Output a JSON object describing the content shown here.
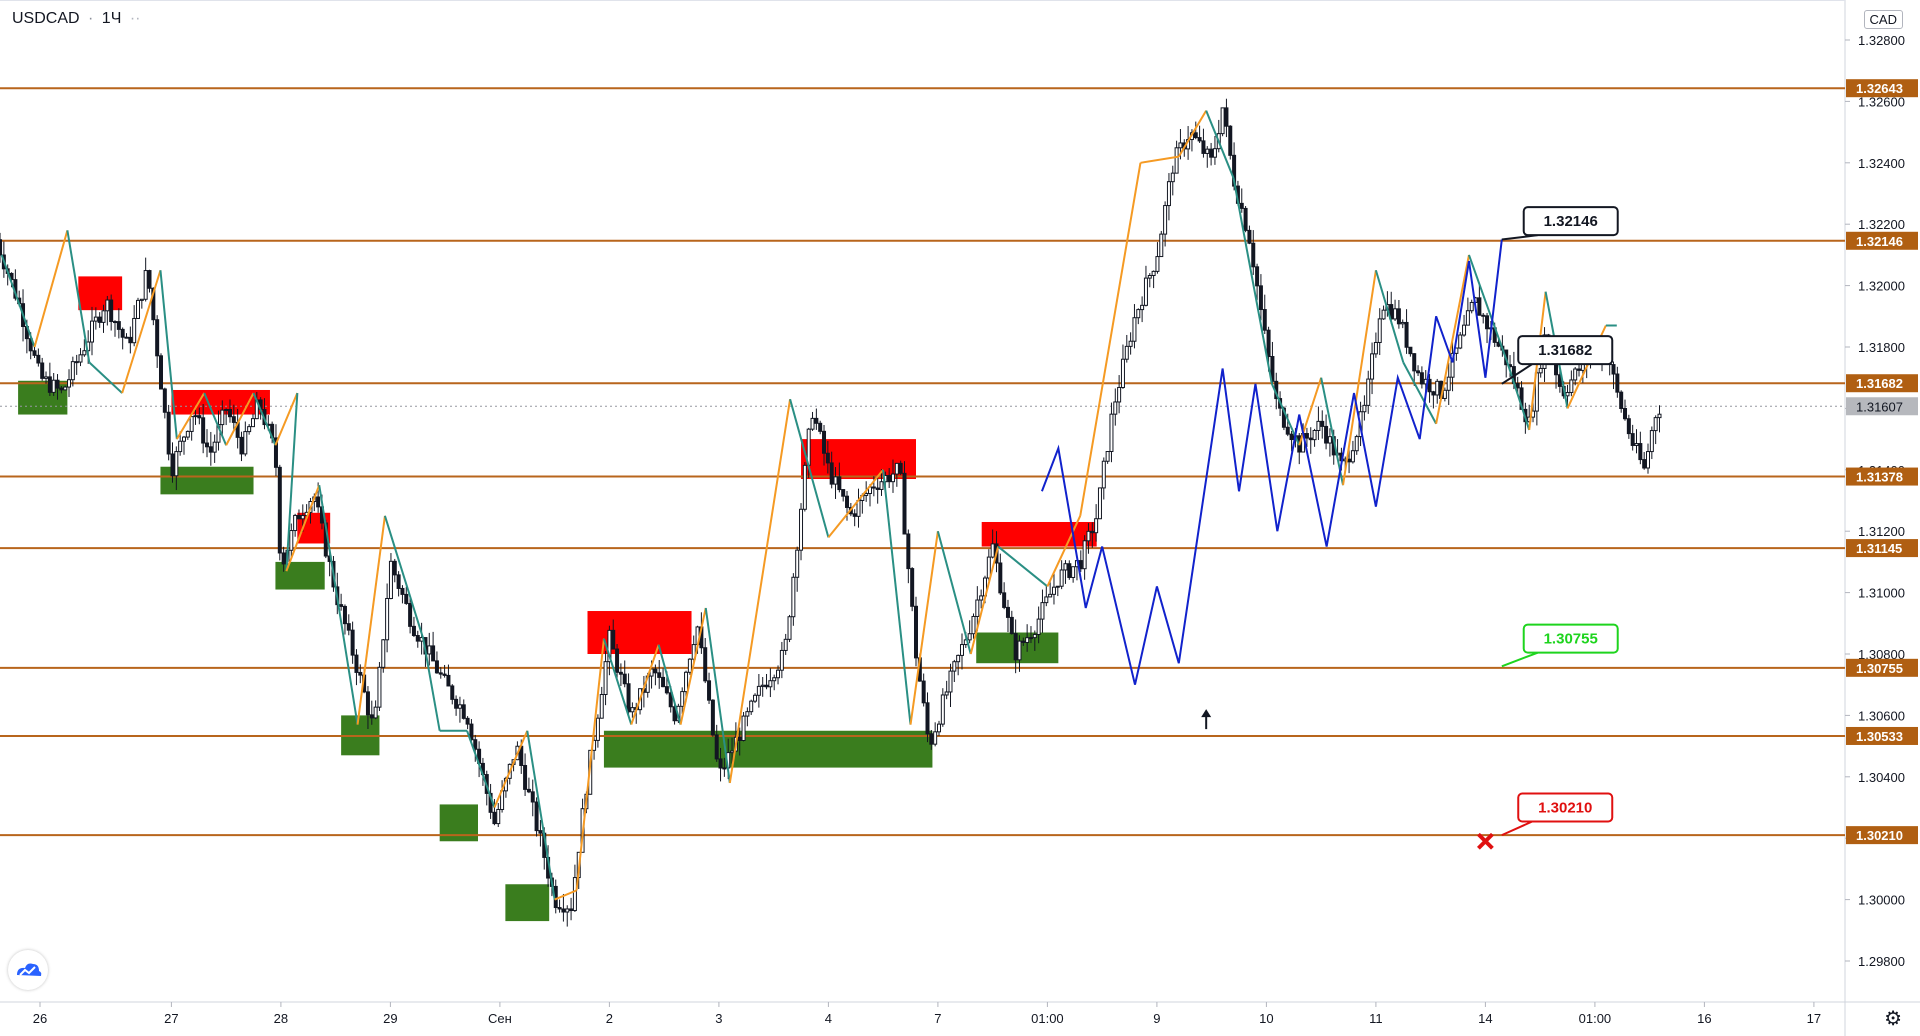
{
  "header": {
    "symbol": "USDCAD",
    "separator": "·",
    "interval": "1Ч",
    "dots": "··"
  },
  "currency_label": "CAD",
  "icons": {
    "logo": "tradingview-logo-icon",
    "settings": "gear-icon",
    "target_arrow": "arrow-up-icon",
    "stop": "x-mark-icon"
  },
  "colors": {
    "level_line": "#b8651c",
    "level_label_bg": "#b05f12",
    "current_price_bg": "#b6b8bd",
    "zigzag_up": "#f59a23",
    "zigzag_down": "#2a8f84",
    "forecast": "#1122cc",
    "supply_zone": "#ff0000",
    "demand_zone": "#3a7d1e",
    "target_green": "#1ed41e",
    "target_red": "#e01010"
  },
  "chart_data": {
    "type": "candlestick",
    "title": "",
    "yaxis_ticks": [
      "1.32800",
      "1.32600",
      "1.32400",
      "1.32200",
      "1.32000",
      "1.31800",
      "1.31600",
      "1.31400",
      "1.31200",
      "1.31000",
      "1.30800",
      "1.30600",
      "1.30400",
      "1.30200",
      "1.30000",
      "1.29800"
    ],
    "ylim": [
      1.2971,
      1.3292
    ],
    "xaxis_ticks": [
      {
        "label": "26",
        "x": 0.8
      },
      {
        "label": "27",
        "x": 2.0
      },
      {
        "label": "28",
        "x": 3.0
      },
      {
        "label": "29",
        "x": 4.0
      },
      {
        "label": "Сен",
        "x": 5.0
      },
      {
        "label": "2",
        "x": 6.0
      },
      {
        "label": "3",
        "x": 7.0
      },
      {
        "label": "4",
        "x": 8.0
      },
      {
        "label": "7",
        "x": 9.0
      },
      {
        "label": "01:00",
        "x": 10.0
      },
      {
        "label": "9",
        "x": 11.0
      },
      {
        "label": "10",
        "x": 12.0
      },
      {
        "label": "11",
        "x": 13.0
      },
      {
        "label": "14",
        "x": 14.0
      },
      {
        "label": "01:00",
        "x": 15.0
      },
      {
        "label": "16",
        "x": 16.0
      },
      {
        "label": "17",
        "x": 17.0
      }
    ],
    "xlim": [
      0.4,
      17.2
    ],
    "levels": [
      "1.32643",
      "1.32146",
      "1.31682",
      "1.31378",
      "1.31145",
      "1.30755",
      "1.30533",
      "1.30210"
    ],
    "current_price": "1.31607",
    "price_path": [
      [
        0.4,
        1.3215
      ],
      [
        0.6,
        1.3195
      ],
      [
        0.8,
        1.317
      ],
      [
        1.0,
        1.3165
      ],
      [
        1.2,
        1.318
      ],
      [
        1.4,
        1.3195
      ],
      [
        1.6,
        1.318
      ],
      [
        1.78,
        1.3205
      ],
      [
        1.9,
        1.317
      ],
      [
        2.0,
        1.314
      ],
      [
        2.2,
        1.316
      ],
      [
        2.35,
        1.3145
      ],
      [
        2.5,
        1.316
      ],
      [
        2.65,
        1.3147
      ],
      [
        2.8,
        1.3162
      ],
      [
        2.95,
        1.3145
      ],
      [
        3.0,
        1.3108
      ],
      [
        3.15,
        1.3125
      ],
      [
        3.3,
        1.3132
      ],
      [
        3.5,
        1.31
      ],
      [
        3.7,
        1.3075
      ],
      [
        3.85,
        1.3055
      ],
      [
        4.0,
        1.311
      ],
      [
        4.2,
        1.309
      ],
      [
        4.5,
        1.307
      ],
      [
        4.7,
        1.306
      ],
      [
        4.95,
        1.3025
      ],
      [
        5.15,
        1.305
      ],
      [
        5.4,
        1.3015
      ],
      [
        5.5,
        1.3
      ],
      [
        5.65,
        1.2998
      ],
      [
        5.8,
        1.304
      ],
      [
        6.0,
        1.3085
      ],
      [
        6.2,
        1.306
      ],
      [
        6.4,
        1.3075
      ],
      [
        6.6,
        1.306
      ],
      [
        6.8,
        1.309
      ],
      [
        7.0,
        1.304
      ],
      [
        7.2,
        1.3055
      ],
      [
        7.4,
        1.307
      ],
      [
        7.6,
        1.308
      ],
      [
        7.85,
        1.316
      ],
      [
        8.0,
        1.314
      ],
      [
        8.2,
        1.3125
      ],
      [
        8.4,
        1.3135
      ],
      [
        8.65,
        1.314
      ],
      [
        8.8,
        1.308
      ],
      [
        8.92,
        1.305
      ],
      [
        9.1,
        1.307
      ],
      [
        9.3,
        1.309
      ],
      [
        9.5,
        1.3115
      ],
      [
        9.7,
        1.308
      ],
      [
        9.9,
        1.309
      ],
      [
        10.1,
        1.3105
      ],
      [
        10.3,
        1.311
      ],
      [
        10.45,
        1.3125
      ],
      [
        10.6,
        1.316
      ],
      [
        10.8,
        1.319
      ],
      [
        11.0,
        1.321
      ],
      [
        11.15,
        1.324
      ],
      [
        11.3,
        1.325
      ],
      [
        11.5,
        1.324
      ],
      [
        11.6,
        1.3258
      ],
      [
        11.7,
        1.3235
      ],
      [
        11.85,
        1.3215
      ],
      [
        12.0,
        1.318
      ],
      [
        12.1,
        1.316
      ],
      [
        12.3,
        1.3148
      ],
      [
        12.5,
        1.3155
      ],
      [
        12.7,
        1.314
      ],
      [
        12.9,
        1.316
      ],
      [
        13.05,
        1.3195
      ],
      [
        13.2,
        1.319
      ],
      [
        13.4,
        1.317
      ],
      [
        13.6,
        1.3165
      ],
      [
        13.75,
        1.318
      ],
      [
        13.9,
        1.3195
      ],
      [
        14.05,
        1.3185
      ],
      [
        14.2,
        1.3175
      ],
      [
        14.4,
        1.3155
      ],
      [
        14.55,
        1.3185
      ],
      [
        14.7,
        1.3165
      ],
      [
        14.9,
        1.3175
      ],
      [
        15.1,
        1.318
      ],
      [
        15.2,
        1.3165
      ],
      [
        15.35,
        1.3148
      ],
      [
        15.45,
        1.314
      ],
      [
        15.55,
        1.3158
      ],
      [
        15.6,
        1.3161
      ]
    ],
    "zigzag": [
      [
        0.45,
        1.321
      ],
      [
        0.75,
        1.318
      ],
      [
        1.05,
        1.3218
      ],
      [
        1.25,
        1.3175
      ],
      [
        1.55,
        1.3165
      ],
      [
        1.9,
        1.3205
      ],
      [
        2.05,
        1.315
      ],
      [
        2.3,
        1.3165
      ],
      [
        2.5,
        1.3148
      ],
      [
        2.75,
        1.3165
      ],
      [
        2.95,
        1.3148
      ],
      [
        3.15,
        1.3165
      ],
      [
        3.05,
        1.3107
      ],
      [
        3.35,
        1.3135
      ],
      [
        3.7,
        1.3057
      ],
      [
        3.95,
        1.3125
      ],
      [
        4.3,
        1.3085
      ],
      [
        4.45,
        1.3055
      ],
      [
        4.7,
        1.3055
      ],
      [
        4.95,
        1.303
      ],
      [
        5.25,
        1.3055
      ],
      [
        5.5,
        1.3
      ],
      [
        5.7,
        1.3003
      ],
      [
        5.95,
        1.3085
      ],
      [
        6.2,
        1.3057
      ],
      [
        6.45,
        1.3083
      ],
      [
        6.65,
        1.3057
      ],
      [
        6.88,
        1.3095
      ],
      [
        7.1,
        1.3038
      ],
      [
        7.65,
        1.3163
      ],
      [
        8.0,
        1.3118
      ],
      [
        8.5,
        1.314
      ],
      [
        8.75,
        1.3057
      ],
      [
        9.0,
        1.312
      ],
      [
        9.3,
        1.308
      ],
      [
        9.55,
        1.3115
      ],
      [
        10.0,
        1.3102
      ],
      [
        10.3,
        1.3125
      ],
      [
        10.85,
        1.324
      ],
      [
        11.2,
        1.3242
      ],
      [
        11.45,
        1.3257
      ],
      [
        11.7,
        1.3235
      ],
      [
        12.05,
        1.3168
      ],
      [
        12.3,
        1.3148
      ],
      [
        12.5,
        1.317
      ],
      [
        12.7,
        1.3135
      ],
      [
        13.0,
        1.3205
      ],
      [
        13.25,
        1.3175
      ],
      [
        13.55,
        1.3155
      ],
      [
        13.85,
        1.321
      ],
      [
        14.2,
        1.3175
      ],
      [
        14.4,
        1.3153
      ],
      [
        14.55,
        1.3198
      ],
      [
        14.75,
        1.316
      ],
      [
        15.1,
        1.3187
      ],
      [
        15.2,
        1.3187
      ]
    ],
    "forecast_line": [
      [
        9.95,
        1.3133
      ],
      [
        10.1,
        1.3147
      ],
      [
        10.35,
        1.3095
      ],
      [
        10.5,
        1.3115
      ],
      [
        10.8,
        1.307
      ],
      [
        11.0,
        1.3102
      ],
      [
        11.2,
        1.3077
      ],
      [
        11.6,
        1.3173
      ],
      [
        11.75,
        1.3133
      ],
      [
        11.9,
        1.3168
      ],
      [
        12.1,
        1.312
      ],
      [
        12.3,
        1.3158
      ],
      [
        12.55,
        1.3115
      ],
      [
        12.8,
        1.3165
      ],
      [
        13.0,
        1.3128
      ],
      [
        13.2,
        1.317
      ],
      [
        13.4,
        1.315
      ],
      [
        13.55,
        1.319
      ],
      [
        13.7,
        1.3175
      ],
      [
        13.85,
        1.3208
      ],
      [
        14.0,
        1.317
      ],
      [
        14.15,
        1.3215
      ]
    ],
    "supply_zones": [
      {
        "x0": 1.15,
        "x1": 1.55,
        "y0": 1.3192,
        "y1": 1.3203
      },
      {
        "x0": 2.0,
        "x1": 2.9,
        "y0": 1.3158,
        "y1": 1.3166
      },
      {
        "x0": 3.15,
        "x1": 3.45,
        "y0": 1.3116,
        "y1": 1.3126
      },
      {
        "x0": 5.8,
        "x1": 6.75,
        "y0": 1.308,
        "y1": 1.3094
      },
      {
        "x0": 7.75,
        "x1": 8.8,
        "y0": 1.3137,
        "y1": 1.315
      },
      {
        "x0": 9.4,
        "x1": 10.45,
        "y0": 1.3115,
        "y1": 1.3123
      }
    ],
    "demand_zones": [
      {
        "x0": 0.6,
        "x1": 1.05,
        "y0": 1.3158,
        "y1": 1.3169
      },
      {
        "x0": 1.9,
        "x1": 2.75,
        "y0": 1.3132,
        "y1": 1.3141
      },
      {
        "x0": 2.95,
        "x1": 3.4,
        "y0": 1.3101,
        "y1": 1.311
      },
      {
        "x0": 3.55,
        "x1": 3.9,
        "y0": 1.3047,
        "y1": 1.306
      },
      {
        "x0": 4.45,
        "x1": 4.8,
        "y0": 1.3019,
        "y1": 1.3031
      },
      {
        "x0": 5.05,
        "x1": 5.45,
        "y0": 1.2993,
        "y1": 1.3005
      },
      {
        "x0": 5.95,
        "x1": 8.95,
        "y0": 1.3043,
        "y1": 1.3055
      },
      {
        "x0": 9.35,
        "x1": 10.1,
        "y0": 1.3077,
        "y1": 1.3087
      }
    ],
    "annotations": [
      {
        "text": "1.32146",
        "price": 1.3215,
        "x": 14.15,
        "style": "black",
        "box_x": 14.35,
        "box_price": 1.3221
      },
      {
        "text": "1.31682",
        "price": 1.3168,
        "x": 14.15,
        "style": "black",
        "box_x": 14.3,
        "box_price": 1.3179
      },
      {
        "text": "1.30755",
        "price": 1.3076,
        "x": 14.15,
        "style": "green",
        "box_x": 14.35,
        "box_price": 1.3085
      },
      {
        "text": "1.30210",
        "price": 1.3021,
        "x": 14.15,
        "style": "red",
        "box_x": 14.3,
        "box_price": 1.303
      }
    ],
    "target_arrow": {
      "x": 11.45,
      "price": 1.3064
    },
    "stop_mark": {
      "x": 14.0,
      "price": 1.3019
    }
  }
}
